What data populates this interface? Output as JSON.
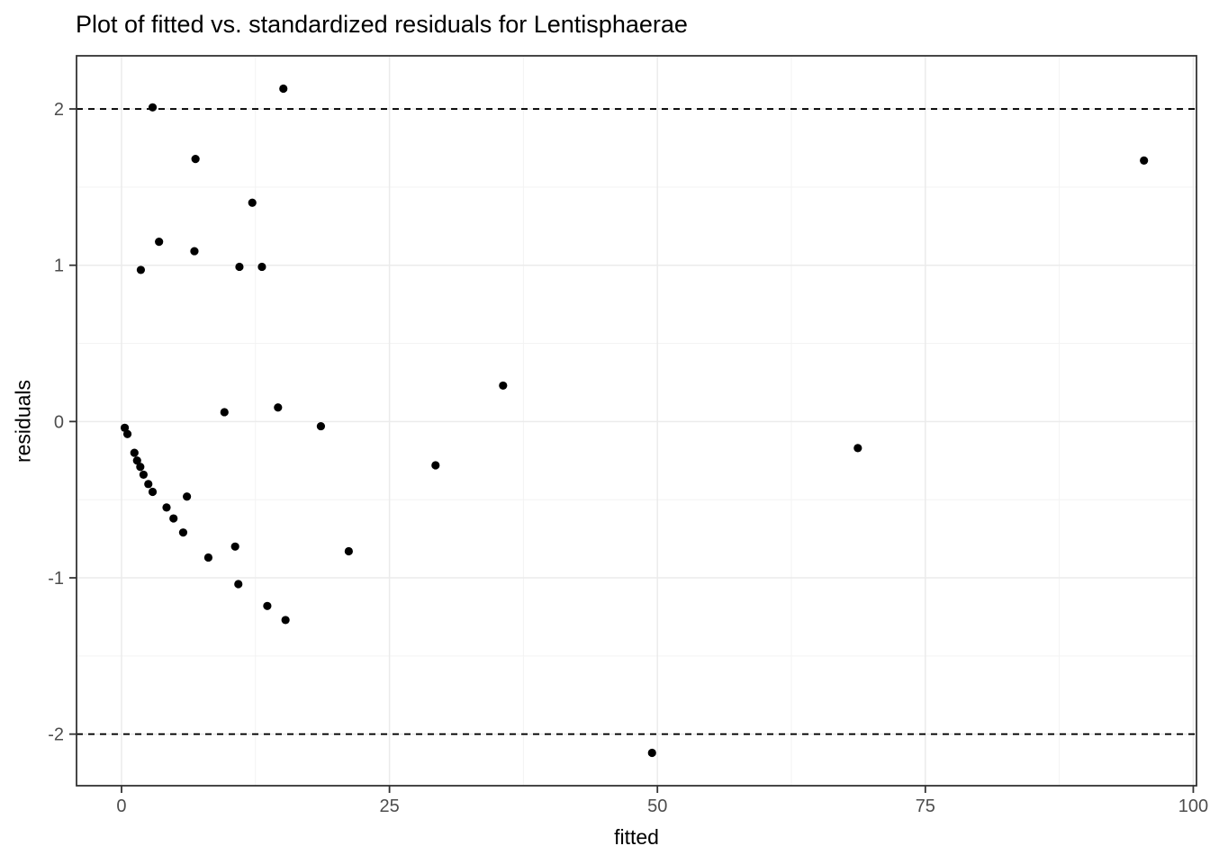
{
  "chart_data": {
    "type": "scatter",
    "title": "Plot of fitted vs. standardized residuals for Lentisphaerae",
    "xlabel": "fitted",
    "ylabel": "residuals",
    "xlim": [
      -4.2,
      100.3
    ],
    "ylim": [
      -2.33,
      2.34
    ],
    "x_ticks": [
      "0",
      "25",
      "50",
      "75",
      "100"
    ],
    "x_tick_values": [
      0,
      25,
      50,
      75,
      100
    ],
    "y_ticks": [
      "-2",
      "-1",
      "0",
      "1",
      "2"
    ],
    "y_tick_values": [
      -2,
      -1,
      0,
      1,
      2
    ],
    "x_minor_gridlines": [
      12.5,
      37.5,
      62.5,
      87.5
    ],
    "y_minor_gridlines": [
      -1.5,
      -0.5,
      0.5,
      1.5
    ],
    "reference_lines_dashed_y": [
      2,
      -2
    ],
    "grid": true,
    "legend": "none",
    "point_color": "#000000",
    "major_grid_color": "#ebebeb",
    "minor_grid_color": "#f3f3f3",
    "panel_border_color": "#333333",
    "tick_label_color": "#4d4d4d",
    "points": [
      [
        15.1,
        2.13
      ],
      [
        2.9,
        2.01
      ],
      [
        6.9,
        1.68
      ],
      [
        12.2,
        1.4
      ],
      [
        3.5,
        1.15
      ],
      [
        6.8,
        1.09
      ],
      [
        1.8,
        0.97
      ],
      [
        11.0,
        0.99
      ],
      [
        13.1,
        0.99
      ],
      [
        95.4,
        1.67
      ],
      [
        35.6,
        0.23
      ],
      [
        14.6,
        0.09
      ],
      [
        9.6,
        0.06
      ],
      [
        18.6,
        -0.03
      ],
      [
        68.7,
        -0.17
      ],
      [
        29.3,
        -0.28
      ],
      [
        0.3,
        -0.04
      ],
      [
        0.55,
        -0.08
      ],
      [
        1.2,
        -0.2
      ],
      [
        1.45,
        -0.25
      ],
      [
        1.75,
        -0.29
      ],
      [
        2.05,
        -0.34
      ],
      [
        2.5,
        -0.4
      ],
      [
        2.9,
        -0.45
      ],
      [
        6.1,
        -0.48
      ],
      [
        4.2,
        -0.55
      ],
      [
        4.85,
        -0.62
      ],
      [
        5.75,
        -0.71
      ],
      [
        8.1,
        -0.87
      ],
      [
        10.6,
        -0.8
      ],
      [
        21.2,
        -0.83
      ],
      [
        10.9,
        -1.04
      ],
      [
        13.6,
        -1.18
      ],
      [
        15.3,
        -1.27
      ],
      [
        49.5,
        -2.12
      ]
    ]
  }
}
